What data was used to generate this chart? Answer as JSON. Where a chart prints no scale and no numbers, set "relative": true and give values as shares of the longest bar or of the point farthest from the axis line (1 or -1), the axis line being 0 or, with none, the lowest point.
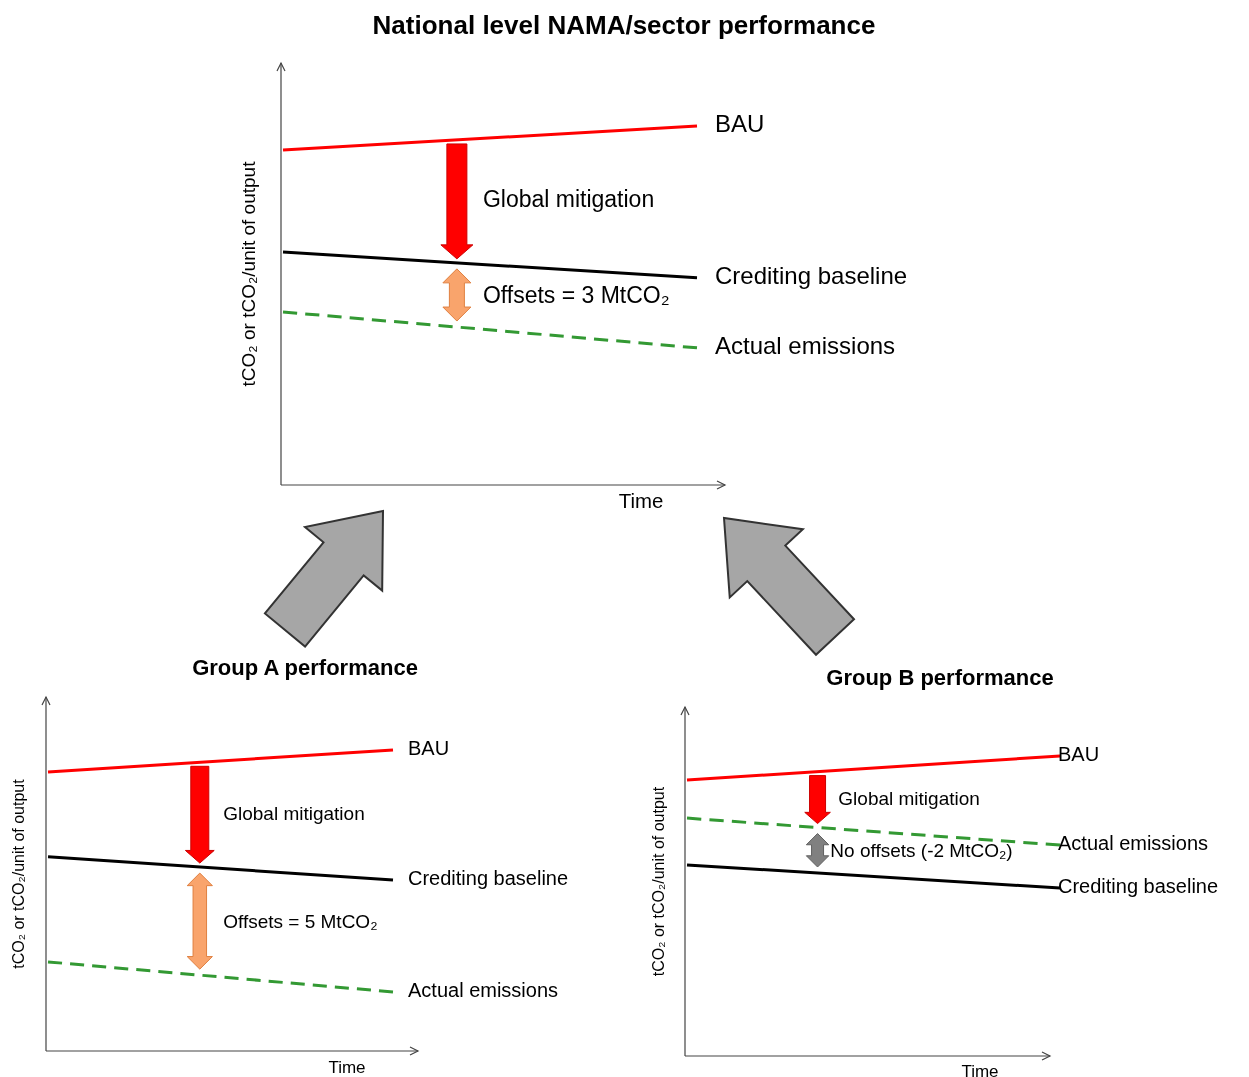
{
  "chart_data": [
    {
      "type": "line",
      "title": "National level NAMA/sector performance",
      "xlabel": "Time",
      "ylabel": "tCO₂ or tCO₂/unit of output",
      "relative": true,
      "categories": [
        null,
        null
      ],
      "legend": false,
      "marker": "none",
      "annotations": [
        "Global mitigation",
        "Offsets = 3 MtCO₂"
      ],
      "series": [
        {
          "name": "BAU",
          "color": "#ff0000",
          "values": [
            0.933,
            1
          ],
          "line_style": "solid"
        },
        {
          "name": "Crediting baseline",
          "color": "#000000",
          "values": [
            0.649,
            0.577
          ],
          "line_style": "solid"
        },
        {
          "name": "Actual emissions",
          "color": "#339933",
          "values": [
            0.482,
            0.382
          ],
          "line_style": "dashed"
        }
      ]
    },
    {
      "type": "line",
      "title": "Group A performance",
      "xlabel": "Time",
      "ylabel": "tCO₂ or tCO₂/unit of output",
      "relative": true,
      "categories": [
        null,
        null
      ],
      "legend": false,
      "marker": "none",
      "annotations": [
        "Global mitigation",
        "Offsets = 5 MtCO₂"
      ],
      "series": [
        {
          "name": "BAU",
          "color": "#ff0000",
          "values": [
            0.927,
            1
          ],
          "line_style": "solid"
        },
        {
          "name": "Crediting baseline",
          "color": "#000000",
          "values": [
            0.645,
            0.568
          ],
          "line_style": "solid"
        },
        {
          "name": "Actual emissions",
          "color": "#339933",
          "values": [
            0.296,
            0.196
          ],
          "line_style": "dashed"
        }
      ]
    },
    {
      "type": "line",
      "title": "Group B performance",
      "xlabel": "Time",
      "ylabel": "tCO₂ or tCO₂/unit of output",
      "relative": true,
      "categories": [
        null,
        null
      ],
      "legend": false,
      "marker": "none",
      "annotations": [
        "Global mitigation",
        "No offsets (-2 MtCO₂)"
      ],
      "series": [
        {
          "name": "BAU",
          "color": "#ff0000",
          "values": [
            0.92,
            1
          ],
          "line_style": "solid"
        },
        {
          "name": "Crediting baseline",
          "color": "#000000",
          "values": [
            0.637,
            0.56
          ],
          "line_style": "solid"
        },
        {
          "name": "Actual emissions",
          "color": "#339933",
          "values": [
            0.793,
            0.703
          ],
          "line_style": "dashed"
        }
      ]
    }
  ]
}
